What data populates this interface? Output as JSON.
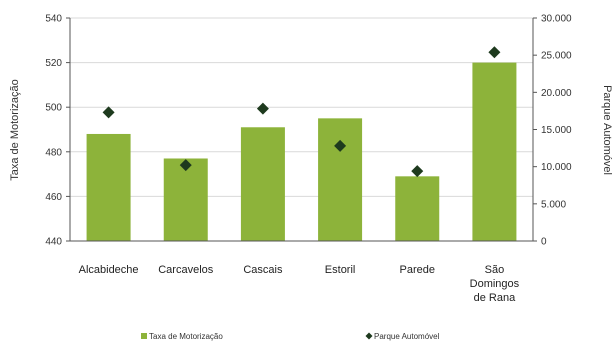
{
  "chart_data": {
    "type": "bar",
    "categories": [
      [
        "Alcabideche"
      ],
      [
        "Carcavelos"
      ],
      [
        "Cascais"
      ],
      [
        "Estoril"
      ],
      [
        "Parede"
      ],
      [
        "São",
        "Domingos",
        "de Rana"
      ]
    ],
    "series": [
      {
        "name": "Taxa de Motorização",
        "kind": "bar",
        "axis": "left",
        "color": "#8DB33A",
        "values": [
          488,
          477,
          491,
          495,
          469,
          520
        ]
      },
      {
        "name": "Parque Automóvel",
        "kind": "marker",
        "axis": "right",
        "color": "#1E3A1E",
        "marker": "diamond",
        "values": [
          17300,
          10200,
          17800,
          12800,
          9400,
          25400
        ]
      }
    ],
    "ylabel": "Taxa de Motorização",
    "y2label": "Parque Automóvel",
    "ylim": [
      440,
      540
    ],
    "yticks": [
      "440",
      "460",
      "480",
      "500",
      "520",
      "540"
    ],
    "y2lim": [
      0,
      30000
    ],
    "y2ticks": [
      "0",
      "5.000",
      "10.000",
      "15.000",
      "20.000",
      "25.000",
      "30.000"
    ],
    "grid": "horizontal",
    "legend": "bottom"
  }
}
